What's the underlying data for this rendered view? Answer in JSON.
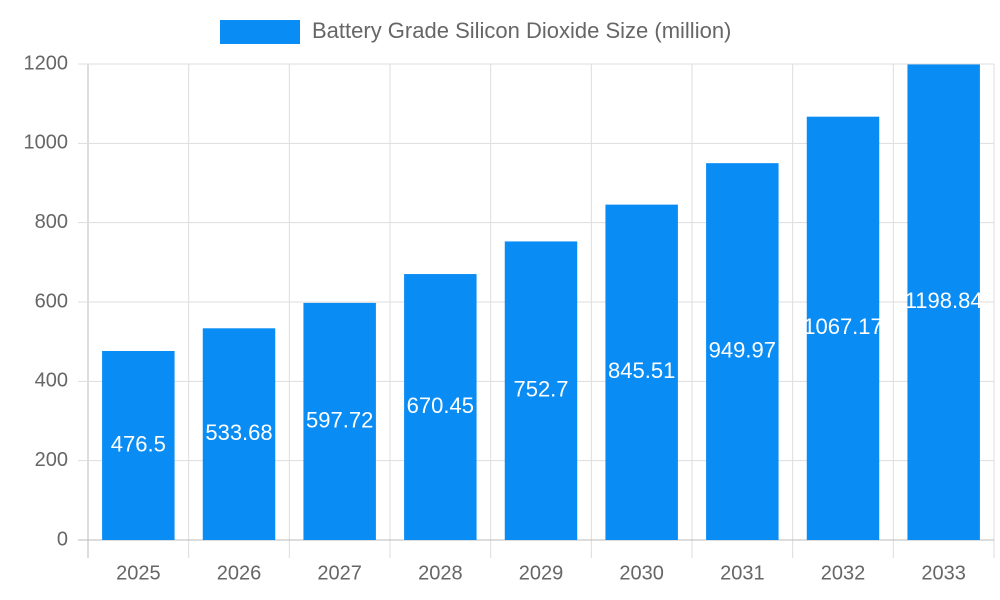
{
  "chart_data": {
    "type": "bar",
    "categories": [
      "2025",
      "2026",
      "2027",
      "2028",
      "2029",
      "2030",
      "2031",
      "2032",
      "2033"
    ],
    "series": [
      {
        "name": "Battery Grade Silicon Dioxide Size (million)",
        "color": "#0a8cf5",
        "values": [
          476.5,
          533.68,
          597.72,
          670.45,
          752.7,
          845.51,
          949.97,
          1067.17,
          1198.84
        ]
      }
    ],
    "ylim": [
      0,
      1200
    ],
    "yticks": [
      0,
      200,
      400,
      600,
      800,
      1000,
      1200
    ],
    "grid": true,
    "legend": "top"
  }
}
